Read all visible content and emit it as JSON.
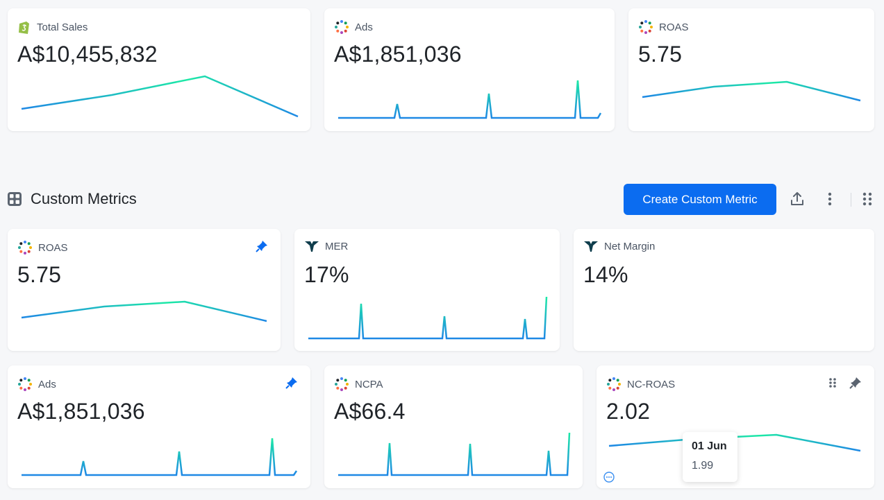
{
  "summary_cards": [
    {
      "id": "total-sales",
      "title": "Total Sales",
      "value": "A$10,455,832",
      "icon": "shopify-icon"
    },
    {
      "id": "ads",
      "title": "Ads",
      "value": "A$1,851,036",
      "icon": "multi-dot-icon"
    },
    {
      "id": "roas",
      "title": "ROAS",
      "value": "5.75",
      "icon": "multi-dot-icon"
    }
  ],
  "section": {
    "title": "Custom Metrics",
    "create_button": "Create Custom Metric"
  },
  "custom_cards": [
    {
      "id": "roas",
      "title": "ROAS",
      "value": "5.75",
      "icon": "multi-dot-icon",
      "pinned": true
    },
    {
      "id": "mer",
      "title": "MER",
      "value": "17%",
      "icon": "triple-whale-icon",
      "pinned": false
    },
    {
      "id": "net-margin",
      "title": "Net Margin",
      "value": "14%",
      "icon": "triple-whale-icon",
      "pinned": false
    },
    {
      "id": "ads",
      "title": "Ads",
      "value": "A$1,851,036",
      "icon": "multi-dot-icon",
      "pinned": true
    },
    {
      "id": "ncpa",
      "title": "NCPA",
      "value": "A$66.4",
      "icon": "multi-dot-icon",
      "pinned": false
    },
    {
      "id": "nc-roas",
      "title": "NC-ROAS",
      "value": "2.02",
      "icon": "multi-dot-icon",
      "pinned": false
    }
  ],
  "tooltip": {
    "date": "01 Jun",
    "value": "1.99"
  },
  "colors": {
    "accent": "#0b6cf0",
    "line_start": "#1e88e5",
    "line_end": "#1de9a6"
  }
}
